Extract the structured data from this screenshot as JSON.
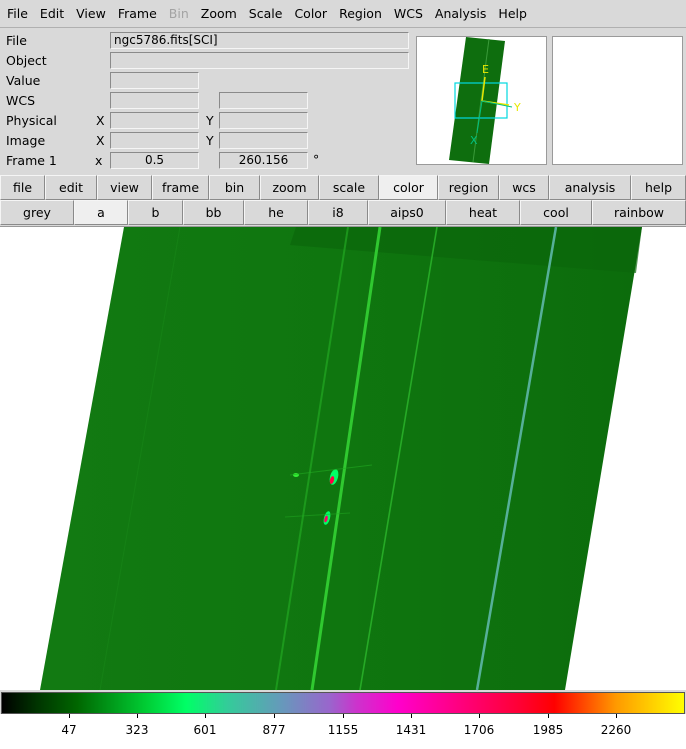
{
  "menu": [
    "File",
    "Edit",
    "View",
    "Frame",
    "Bin",
    "Zoom",
    "Scale",
    "Color",
    "Region",
    "WCS",
    "Analysis",
    "Help"
  ],
  "menu_disabled": "Bin",
  "info": {
    "file_label": "File",
    "file_value": "ngc5786.fits[SCI]",
    "object_label": "Object",
    "object_value": "",
    "value_label": "Value",
    "wcs_label": "WCS",
    "physical_label": "Physical",
    "image_label": "Image",
    "frame_label": "Frame 1",
    "x_label": "X",
    "y_label": "Y",
    "x_small": "x",
    "frame_zoom": "0.5",
    "frame_angle": "260.156",
    "degree": "°"
  },
  "panner": {
    "compass_e": "E",
    "compass_n": "N",
    "axis_x": "X",
    "axis_y": "Y"
  },
  "buttons_row1": [
    "file",
    "edit",
    "view",
    "frame",
    "bin",
    "zoom",
    "scale",
    "color",
    "region",
    "wcs",
    "analysis",
    "help"
  ],
  "buttons_row1_active": "color",
  "buttons_row2": [
    "grey",
    "a",
    "b",
    "bb",
    "he",
    "i8",
    "aips0",
    "heat",
    "cool",
    "rainbow"
  ],
  "buttons_row2_active": "a",
  "colorbar": {
    "ticks": [
      "47",
      "323",
      "601",
      "877",
      "1155",
      "1431",
      "1706",
      "1985",
      "2260"
    ]
  },
  "colors": {
    "chrome": "#d9d9d9",
    "image_green": "#0e7a0e",
    "compass": "#e8e800",
    "panner_box": "#00d8e0"
  }
}
